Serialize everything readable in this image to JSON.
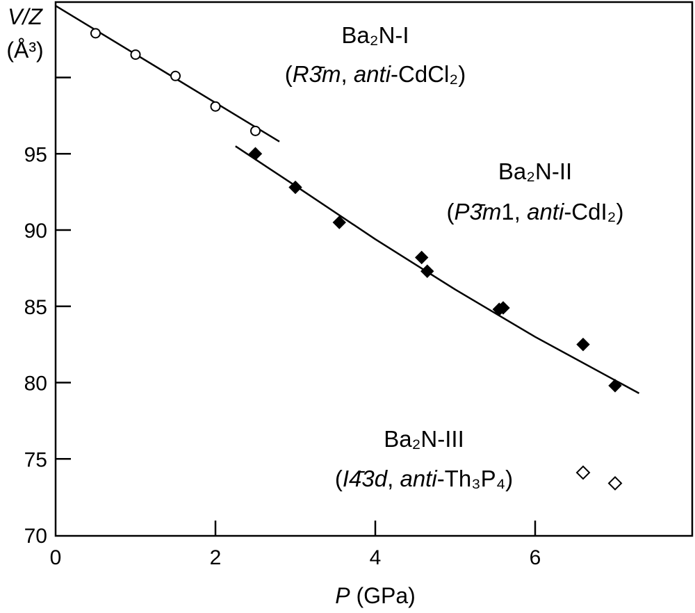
{
  "chart_data": {
    "type": "scatter",
    "xlabel": {
      "var": "P",
      "unit": " (GPa)"
    },
    "ylabel": {
      "line1": "V/Z",
      "line2": "(Å³)"
    },
    "xlim": [
      0,
      8
    ],
    "ylim": [
      70,
      105
    ],
    "x_ticks": [
      0,
      2,
      4,
      6
    ],
    "y_ticks": [
      70,
      75,
      80,
      85,
      90,
      95
    ],
    "y_minor_ticks": [
      100
    ],
    "grid": false,
    "series": [
      {
        "name": "Ba2N-I",
        "marker": "open-circle",
        "points": [
          [
            0.5,
            102.9
          ],
          [
            1.0,
            101.5
          ],
          [
            1.5,
            100.1
          ],
          [
            2.0,
            98.1
          ],
          [
            2.5,
            96.5
          ]
        ],
        "fit": [
          [
            0.0,
            104.7
          ],
          [
            2.8,
            95.8
          ]
        ]
      },
      {
        "name": "Ba2N-II",
        "marker": "filled-diamond",
        "points": [
          [
            2.5,
            95.0
          ],
          [
            3.0,
            92.8
          ],
          [
            3.55,
            90.5
          ],
          [
            4.58,
            88.2
          ],
          [
            4.65,
            87.3
          ],
          [
            5.55,
            84.8
          ],
          [
            5.6,
            84.9
          ],
          [
            6.6,
            82.5
          ],
          [
            7.0,
            79.8
          ]
        ],
        "fit": [
          [
            2.25,
            95.5
          ],
          [
            3.0,
            92.9
          ],
          [
            4.0,
            89.4
          ],
          [
            5.0,
            86.1
          ],
          [
            6.0,
            83.0
          ],
          [
            7.3,
            79.3
          ]
        ]
      },
      {
        "name": "Ba2N-III",
        "marker": "open-diamond",
        "points": [
          [
            6.6,
            74.1
          ],
          [
            7.0,
            73.4
          ]
        ]
      }
    ],
    "annotations": [
      {
        "line1": "Ba₂N-I",
        "line2": {
          "pre": "(",
          "sym": "R3̄m",
          "mid": ", ",
          "ital": "anti",
          "post": "-CdCl₂)"
        }
      },
      {
        "line1": "Ba₂N-II",
        "line2": {
          "pre": "(",
          "sym": "P3̄m",
          "sym2": "1",
          "mid": ", ",
          "ital": "anti",
          "post": "-CdI₂)"
        }
      },
      {
        "line1": "Ba₂N-III",
        "line2": {
          "pre": "(",
          "sym": "I4̄3",
          "sym2": "d",
          "mid": ", ",
          "ital": "anti",
          "post": "-Th₃P₄)"
        }
      }
    ]
  }
}
